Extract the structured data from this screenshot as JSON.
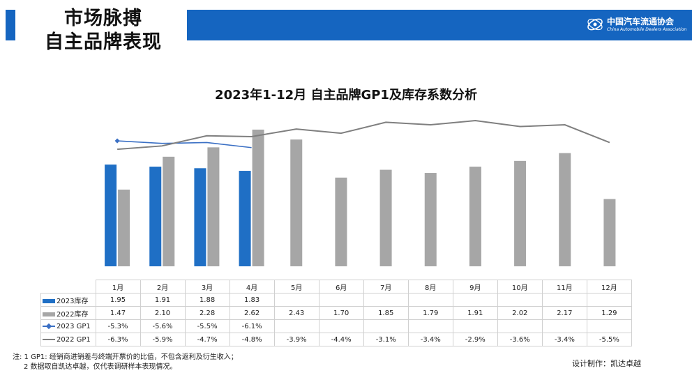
{
  "header": {
    "title_line1": "市场脉搏",
    "title_line2": "自主品牌表现",
    "logo_cn": "中国汽车流通协会",
    "logo_en": "China Automobile Dealers Association"
  },
  "chart_data": {
    "type": "bar",
    "title": "2023年1-12月 自主品牌GP1及库存系数分析",
    "categories": [
      "1月",
      "2月",
      "3月",
      "4月",
      "5月",
      "6月",
      "7月",
      "8月",
      "9月",
      "10月",
      "11月",
      "12月"
    ],
    "series": [
      {
        "name": "2023库存",
        "kind": "bar",
        "color": "#1f6fc5",
        "values": [
          1.95,
          1.91,
          1.88,
          1.83,
          null,
          null,
          null,
          null,
          null,
          null,
          null,
          null
        ],
        "labels": [
          "1.95",
          "1.91",
          "1.88",
          "1.83",
          "",
          "",
          "",
          "",
          "",
          "",
          "",
          ""
        ]
      },
      {
        "name": "2022库存",
        "kind": "bar",
        "color": "#a6a6a6",
        "values": [
          1.47,
          2.1,
          2.28,
          2.62,
          2.43,
          1.7,
          1.85,
          1.79,
          1.91,
          2.02,
          2.17,
          1.29
        ],
        "labels": [
          "1.47",
          "2.10",
          "2.28",
          "2.62",
          "2.43",
          "1.70",
          "1.85",
          "1.79",
          "1.91",
          "2.02",
          "2.17",
          "1.29"
        ]
      },
      {
        "name": "2023 GP1",
        "kind": "line",
        "color": "#3a6fc4",
        "values": [
          -5.3,
          -5.6,
          -5.5,
          -6.1,
          null,
          null,
          null,
          null,
          null,
          null,
          null,
          null
        ],
        "labels": [
          "-5.3%",
          "-5.6%",
          "-5.5%",
          "-6.1%",
          "",
          "",
          "",
          "",
          "",
          "",
          "",
          ""
        ]
      },
      {
        "name": "2022 GP1",
        "kind": "line",
        "color": "#7f7f7f",
        "values": [
          -6.3,
          -5.9,
          -4.7,
          -4.8,
          -3.9,
          -4.4,
          -3.1,
          -3.4,
          -2.9,
          -3.6,
          -3.4,
          -5.5
        ],
        "labels": [
          "-6.3%",
          "-5.9%",
          "-4.7%",
          "-4.8%",
          "-3.9%",
          "-4.4%",
          "-3.1%",
          "-3.4%",
          "-2.9%",
          "-3.6%",
          "-3.4%",
          "-5.5%"
        ]
      }
    ],
    "bar_ylim": [
      0,
      3.1
    ],
    "line_ylim": [
      -20,
      -1
    ],
    "grid": false,
    "legend_placement": "table-row-headers"
  },
  "footnote": {
    "line1": "注: 1  GP1: 经销商进销差与终端开票价的比值，不包含返利及衍生收入；",
    "line2": "2 数据取自凯达卓越，仅代表调研样本表现情况。"
  },
  "designer": "设计制作：凯达卓越"
}
